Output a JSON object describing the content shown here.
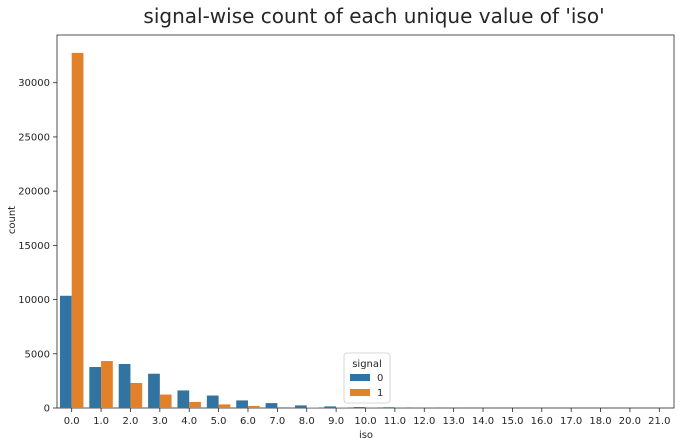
{
  "chart_data": {
    "type": "bar",
    "title": "signal-wise count of each unique value of 'iso'",
    "xlabel": "iso",
    "ylabel": "count",
    "categories": [
      "0.0",
      "1.0",
      "2.0",
      "3.0",
      "4.0",
      "5.0",
      "6.0",
      "7.0",
      "8.0",
      "9.0",
      "10.0",
      "11.0",
      "12.0",
      "13.0",
      "14.0",
      "15.0",
      "16.0",
      "17.0",
      "18.0",
      "20.0",
      "21.0"
    ],
    "series": [
      {
        "name": "0",
        "color": "#3274a1",
        "values": [
          10350,
          3780,
          4060,
          3160,
          1620,
          1150,
          700,
          450,
          240,
          150,
          90,
          70,
          30,
          10,
          5,
          5,
          5,
          3,
          2,
          2,
          1
        ]
      },
      {
        "name": "1",
        "color": "#e1812c",
        "values": [
          32750,
          4330,
          2310,
          1240,
          560,
          330,
          190,
          80,
          50,
          30,
          20,
          15,
          10,
          5,
          3,
          2,
          2,
          1,
          1,
          1,
          1
        ]
      }
    ],
    "ylim": [
      0,
      34400
    ],
    "yticks": [
      0,
      5000,
      10000,
      15000,
      20000,
      25000,
      30000
    ],
    "legend": {
      "title": "signal",
      "placement": "lower-center",
      "labels": [
        "0",
        "1"
      ]
    }
  }
}
